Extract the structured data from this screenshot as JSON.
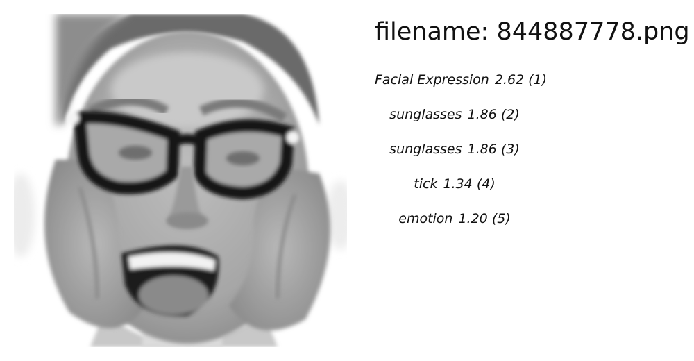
{
  "image": {
    "alt": "grayscale face"
  },
  "header": {
    "filename": "filename: 844887778.png"
  },
  "labels": [
    {
      "name": "Facial Expression",
      "score": "2.62",
      "rank": "(1)"
    },
    {
      "name": "sunglasses",
      "score": "1.86",
      "rank": "(2)"
    },
    {
      "name": "sunglasses",
      "score": "1.86",
      "rank": "(3)"
    },
    {
      "name": "tick",
      "score": "1.34",
      "rank": "(4)"
    },
    {
      "name": "emotion",
      "score": "1.20",
      "rank": "(5)"
    }
  ]
}
